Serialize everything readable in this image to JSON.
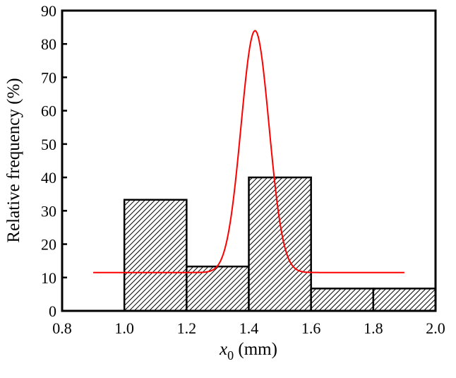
{
  "chart_data": {
    "type": "bar",
    "subtype": "histogram-with-fitted-curve",
    "title": "",
    "xlabel": "x0 (mm)",
    "xlabel_parts": {
      "var": "x",
      "sub": "0",
      "unit": " (mm)"
    },
    "ylabel": "Relative frequency (%)",
    "xlim": [
      0.8,
      2.0
    ],
    "ylim": [
      0,
      90
    ],
    "x_ticks": [
      "0.8",
      "1.0",
      "1.2",
      "1.4",
      "1.6",
      "1.8",
      "2.0"
    ],
    "y_ticks": [
      "0",
      "10",
      "20",
      "30",
      "40",
      "50",
      "60",
      "70",
      "80",
      "90"
    ],
    "grid": false,
    "legend": null,
    "bins": [
      {
        "x0": 1.0,
        "x1": 1.2,
        "value": 33.3
      },
      {
        "x0": 1.2,
        "x1": 1.4,
        "value": 13.3
      },
      {
        "x0": 1.4,
        "x1": 1.6,
        "value": 40.0
      },
      {
        "x0": 1.6,
        "x1": 1.8,
        "value": 6.7
      },
      {
        "x0": 1.8,
        "x1": 2.0,
        "value": 6.7
      }
    ],
    "categories": [
      "1.0-1.2",
      "1.2-1.4",
      "1.4-1.6",
      "1.6-1.8",
      "1.8-2.0"
    ],
    "values": [
      33.3,
      13.3,
      40.0,
      6.7,
      6.7
    ],
    "bar_style": {
      "fill": "hatched diagonal",
      "edge": "#000000"
    },
    "fit_curve": {
      "type": "gaussian",
      "color": "#ff0000",
      "x_range": [
        0.9,
        1.9
      ],
      "baseline": 11.5,
      "peak_x": 1.42,
      "peak_y": 84.0,
      "sigma": 0.045
    }
  }
}
